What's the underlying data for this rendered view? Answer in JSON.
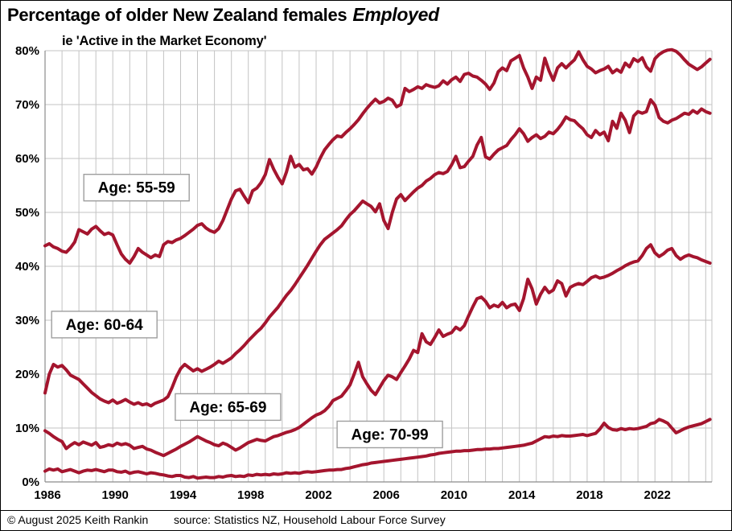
{
  "title": {
    "prefix": "Percentage of older New Zealand females",
    "emphasis": "Employed"
  },
  "subtitle": "ie 'Active in the Market Economy'",
  "footer": {
    "copyright": "© August 2025 Keith Rankin",
    "source": "source: Statistics NZ, Household Labour Force Survey"
  },
  "chart_data": {
    "type": "line",
    "title": "Percentage of older New Zealand females Employed",
    "subtitle": "ie 'Active in the Market Economy'",
    "xlabel": "",
    "ylabel": "",
    "x_start": 1986,
    "x_step": 0.25,
    "x_end": 2025.25,
    "xlim": [
      1986,
      2025.4
    ],
    "ylim": [
      0,
      80
    ],
    "grid": "both",
    "legend_position": "inline-labels",
    "x_ticks": [
      1986,
      1990,
      1994,
      1998,
      2002,
      2006,
      2010,
      2014,
      2018,
      2022
    ],
    "y_ticks": [
      "0%",
      "10%",
      "20%",
      "30%",
      "40%",
      "50%",
      "60%",
      "70%",
      "80%"
    ],
    "line_color": "#A4152E",
    "grid_color": "#C3C3C3",
    "axis_color": "#8C8C8C",
    "label_box_border": "#9E9E9E",
    "series": [
      {
        "name": "Age: 55-59",
        "label": {
          "year": 1991.4,
          "value": 54.6
        },
        "values": [
          43.8,
          44.2,
          43.6,
          43.3,
          42.8,
          42.6,
          43.4,
          44.5,
          46.8,
          46.4,
          46.0,
          46.9,
          47.4,
          46.6,
          45.9,
          46.2,
          45.8,
          44.0,
          42.3,
          41.3,
          40.6,
          41.8,
          43.3,
          42.6,
          42.1,
          41.6,
          42.1,
          41.8,
          44.0,
          44.6,
          44.4,
          44.9,
          45.2,
          45.7,
          46.3,
          46.9,
          47.6,
          47.9,
          47.1,
          46.6,
          46.3,
          47.0,
          48.5,
          50.5,
          52.5,
          54.0,
          54.3,
          53.0,
          51.8,
          54.0,
          54.5,
          55.5,
          57.0,
          59.8,
          58.0,
          56.5,
          55.3,
          57.5,
          60.4,
          58.4,
          58.9,
          57.9,
          58.1,
          57.1,
          58.4,
          60.1,
          61.6,
          62.6,
          63.5,
          64.2,
          64.0,
          64.8,
          65.5,
          66.3,
          67.2,
          68.3,
          69.3,
          70.2,
          71.0,
          70.3,
          70.6,
          71.2,
          70.8,
          69.6,
          70.0,
          73.0,
          72.4,
          72.8,
          73.3,
          73.0,
          73.7,
          73.4,
          73.2,
          73.5,
          74.4,
          73.8,
          74.6,
          75.1,
          74.3,
          75.6,
          75.8,
          75.3,
          75.1,
          74.5,
          73.8,
          72.8,
          74.0,
          76.1,
          76.8,
          76.3,
          78.1,
          78.6,
          79.1,
          76.8,
          75.1,
          73.0,
          75.1,
          74.5,
          78.6,
          76.3,
          74.5,
          76.8,
          77.6,
          76.8,
          77.6,
          78.3,
          79.8,
          78.3,
          77.1,
          76.6,
          75.9,
          76.3,
          76.6,
          77.1,
          75.9,
          76.5,
          76.0,
          77.7,
          77.0,
          78.5,
          78.0,
          78.7,
          77.0,
          76.2,
          78.5,
          79.3,
          79.8,
          80.1,
          80.2,
          79.9,
          79.2,
          78.3,
          77.5,
          77.0,
          76.5,
          77.0,
          77.7,
          78.4
        ]
      },
      {
        "name": "Age: 60-64",
        "label": {
          "year": 1989.5,
          "value": 29.2
        },
        "values": [
          16.5,
          20.0,
          21.8,
          21.3,
          21.6,
          20.8,
          19.8,
          19.4,
          19.0,
          18.2,
          17.4,
          16.6,
          16.0,
          15.4,
          15.0,
          14.7,
          15.2,
          14.6,
          14.9,
          15.3,
          14.8,
          14.4,
          14.7,
          14.3,
          14.5,
          14.1,
          14.6,
          14.9,
          15.2,
          15.8,
          17.5,
          19.5,
          21.0,
          21.8,
          21.2,
          20.6,
          21.0,
          20.5,
          20.9,
          21.3,
          21.8,
          22.4,
          22.0,
          22.5,
          23.0,
          23.8,
          24.5,
          25.3,
          26.2,
          27.0,
          27.8,
          28.5,
          29.5,
          30.6,
          31.5,
          32.4,
          33.5,
          34.6,
          35.5,
          36.6,
          37.8,
          39.0,
          40.2,
          41.5,
          42.8,
          44.0,
          45.0,
          45.6,
          46.2,
          46.8,
          47.5,
          48.6,
          49.6,
          50.3,
          51.2,
          52.1,
          51.6,
          51.1,
          50.1,
          51.6,
          48.5,
          47.0,
          50.0,
          52.5,
          53.3,
          52.2,
          53.0,
          53.8,
          54.5,
          55.0,
          55.8,
          56.3,
          57.0,
          57.4,
          57.2,
          57.6,
          58.8,
          60.4,
          58.3,
          58.5,
          59.5,
          60.4,
          62.5,
          63.9,
          60.3,
          59.9,
          60.8,
          61.6,
          62.0,
          62.4,
          63.5,
          64.4,
          65.5,
          64.6,
          63.2,
          63.9,
          64.4,
          63.7,
          64.1,
          64.9,
          64.6,
          65.4,
          66.4,
          67.7,
          67.2,
          67.0,
          66.2,
          65.5,
          64.4,
          63.9,
          65.2,
          64.4,
          64.9,
          63.3,
          66.9,
          65.6,
          68.4,
          67.1,
          64.8,
          67.9,
          68.7,
          68.4,
          68.7,
          70.9,
          69.9,
          67.6,
          66.9,
          66.6,
          67.1,
          67.4,
          67.9,
          68.4,
          68.2,
          68.9,
          68.4,
          69.2,
          68.7,
          68.4
        ]
      },
      {
        "name": "Age: 65-69",
        "label": {
          "year": 1996.8,
          "value": 13.9
        },
        "values": [
          9.5,
          9.0,
          8.4,
          7.9,
          7.5,
          6.2,
          6.8,
          7.3,
          6.9,
          7.4,
          7.1,
          6.8,
          7.3,
          6.4,
          6.6,
          6.9,
          6.7,
          7.2,
          6.9,
          7.1,
          6.8,
          6.2,
          6.4,
          6.6,
          6.1,
          5.9,
          5.5,
          5.2,
          4.9,
          5.3,
          5.7,
          6.1,
          6.6,
          7.0,
          7.4,
          7.9,
          8.4,
          8.0,
          7.6,
          7.3,
          6.9,
          6.7,
          7.2,
          6.9,
          6.4,
          5.9,
          6.3,
          6.8,
          7.3,
          7.6,
          7.9,
          7.7,
          7.6,
          8.0,
          8.4,
          8.6,
          8.9,
          9.2,
          9.4,
          9.7,
          10.1,
          10.7,
          11.3,
          11.9,
          12.4,
          12.7,
          13.2,
          14.0,
          15.1,
          15.5,
          15.9,
          16.9,
          18.0,
          20.0,
          22.2,
          19.5,
          18.2,
          17.0,
          16.2,
          17.5,
          18.8,
          19.8,
          19.5,
          19.0,
          20.3,
          21.5,
          22.8,
          24.4,
          24.0,
          27.5,
          26.0,
          25.5,
          26.8,
          28.2,
          27.0,
          27.4,
          27.7,
          28.7,
          28.2,
          29.0,
          30.8,
          32.5,
          34.0,
          34.3,
          33.5,
          32.3,
          32.8,
          32.5,
          33.3,
          32.3,
          32.8,
          33.0,
          31.8,
          34.0,
          37.6,
          35.8,
          33.0,
          34.8,
          36.1,
          35.1,
          35.6,
          37.3,
          36.8,
          34.5,
          36.1,
          36.5,
          36.8,
          36.6,
          37.2,
          37.9,
          38.2,
          37.8,
          38.0,
          38.3,
          38.7,
          39.2,
          39.6,
          40.1,
          40.5,
          40.8,
          41.0,
          42.0,
          43.3,
          44.0,
          42.5,
          41.8,
          42.3,
          43.0,
          43.3,
          42.0,
          41.3,
          41.8,
          42.1,
          41.8,
          41.6,
          41.2,
          40.9,
          40.6
        ]
      },
      {
        "name": "Age: 70-99",
        "label": {
          "year": 2006.35,
          "value": 8.8
        },
        "values": [
          2.0,
          2.4,
          2.2,
          2.4,
          1.9,
          2.1,
          2.3,
          2.0,
          1.7,
          2.0,
          2.2,
          2.1,
          2.3,
          2.1,
          1.9,
          2.2,
          2.2,
          1.9,
          1.8,
          2.0,
          1.6,
          1.8,
          1.9,
          1.7,
          1.5,
          1.7,
          1.6,
          1.4,
          1.3,
          1.1,
          1.0,
          1.2,
          1.2,
          0.9,
          0.8,
          1.0,
          0.7,
          0.8,
          0.9,
          0.8,
          0.8,
          1.0,
          0.9,
          1.1,
          1.2,
          1.0,
          1.1,
          1.0,
          1.3,
          1.2,
          1.4,
          1.3,
          1.4,
          1.3,
          1.5,
          1.4,
          1.5,
          1.7,
          1.6,
          1.7,
          1.6,
          1.8,
          1.9,
          1.8,
          1.9,
          2.0,
          2.1,
          2.2,
          2.2,
          2.3,
          2.3,
          2.5,
          2.6,
          2.8,
          3.0,
          3.2,
          3.3,
          3.5,
          3.6,
          3.7,
          3.8,
          3.9,
          4.0,
          4.1,
          4.2,
          4.3,
          4.4,
          4.5,
          4.6,
          4.7,
          4.8,
          5.0,
          5.1,
          5.3,
          5.4,
          5.5,
          5.6,
          5.7,
          5.7,
          5.8,
          5.8,
          5.9,
          6.0,
          6.0,
          6.1,
          6.1,
          6.2,
          6.2,
          6.3,
          6.4,
          6.5,
          6.6,
          6.7,
          6.8,
          7.0,
          7.2,
          7.6,
          8.0,
          8.4,
          8.3,
          8.5,
          8.4,
          8.6,
          8.5,
          8.5,
          8.6,
          8.7,
          8.8,
          8.6,
          8.8,
          9.0,
          9.8,
          10.9,
          10.1,
          9.7,
          9.6,
          9.9,
          9.7,
          9.9,
          9.8,
          9.9,
          10.1,
          10.3,
          10.8,
          11.0,
          11.6,
          11.3,
          10.9,
          10.0,
          9.1,
          9.5,
          9.9,
          10.2,
          10.4,
          10.6,
          10.8,
          11.2,
          11.6
        ]
      }
    ]
  }
}
